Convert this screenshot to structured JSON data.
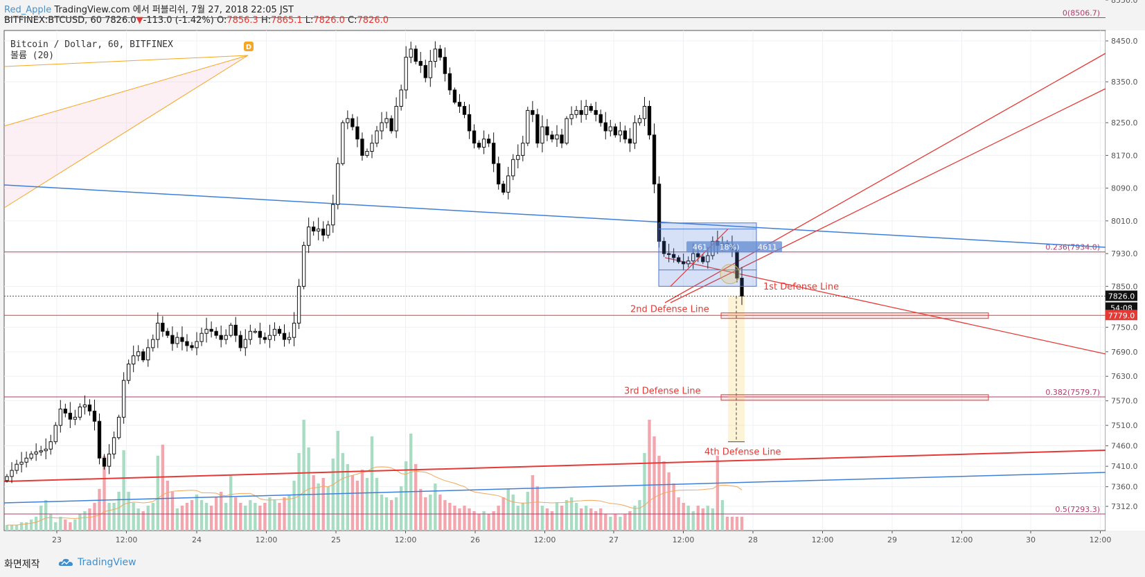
{
  "header": {
    "author": "Red_Apple",
    "published": "TradingView.com 에서 퍼블리쉬, 7월 27, 2018 22:05 JST",
    "symbol": "BITFINEX:BTCUSD, 60",
    "last": "7826.0",
    "arrow": "▼",
    "change": "-113.0 (-1.42%)",
    "o_label": "O:",
    "o_val": "7856.3",
    "h_label": "H:",
    "h_val": "7865.1",
    "l_label": "L:",
    "l_val": "7826.0",
    "c_label": "C:",
    "c_val": "7826.0"
  },
  "legend": {
    "series": "Bitcoin / Dollar, 60, BITFINEX",
    "volume": "볼륨 (20)",
    "marker": "D"
  },
  "footer": {
    "left": "화면제작",
    "brand": "TradingView"
  },
  "colors": {
    "up": "#5cbd9a",
    "down": "#000000",
    "vol_up": "#a8dcc3",
    "vol_down": "#f2a6ae",
    "annotation": "#e53935",
    "fib": "#b23b6a",
    "trend_blue": "#3d7fd8",
    "fan": "#f5a623"
  },
  "chart_data": {
    "type": "candlestick",
    "symbol": "BITFINEX:BTCUSD",
    "interval": "60",
    "y_ticks": [
      7312,
      7360,
      7410,
      7460,
      7510,
      7570,
      7630,
      7690,
      7750,
      7850,
      7930,
      8010,
      8090,
      8170,
      8250,
      8350,
      8450,
      8550
    ],
    "y_ticks_label": [
      "7312.0",
      "7360.0",
      "7410.0",
      "7460.0",
      "7510.0",
      "7570.0",
      "7630.0",
      "7690.0",
      "7750.0",
      "7850.0",
      "7930.0",
      "8010.0",
      "8090.0",
      "8170.0",
      "8250.0",
      "8350.0",
      "8450.0",
      "8550.0"
    ],
    "x_ticks": [
      "23",
      "12:00",
      "24",
      "12:00",
      "25",
      "12:00",
      "26",
      "12:00",
      "27",
      "12:00",
      "28",
      "12:00",
      "29",
      "12:00",
      "30",
      "12:00"
    ],
    "price_tags": {
      "last": "7826.0",
      "countdown": "54:08",
      "target": "7779.0"
    },
    "fib_levels": [
      {
        "label": "0(8506.7)",
        "value": 8506.7
      },
      {
        "label": "0.236(7934.0)",
        "value": 7934.0
      },
      {
        "label": "0.382(7579.7)",
        "value": 7579.7
      },
      {
        "label": "0.5(7293.3)",
        "value": 7293.3
      }
    ],
    "annotations": [
      {
        "text": "1st Defense Line",
        "price": 7850
      },
      {
        "text": "2nd Defense Line",
        "price": 7779
      },
      {
        "text": "3rd Defense Line",
        "price": 7579
      },
      {
        "text": "4th Defense Line",
        "price": 7455
      }
    ],
    "box_label": "461",
    "box_pct": "18%)",
    "box_vol": "4611",
    "close_path": [
      7385,
      7400,
      7415,
      7420,
      7430,
      7440,
      7445,
      7448,
      7452,
      7470,
      7510,
      7550,
      7540,
      7525,
      7530,
      7555,
      7560,
      7545,
      7520,
      7430,
      7410,
      7440,
      7480,
      7530,
      7620,
      7660,
      7680,
      7690,
      7670,
      7700,
      7720,
      7760,
      7740,
      7730,
      7710,
      7725,
      7715,
      7705,
      7700,
      7715,
      7735,
      7745,
      7740,
      7730,
      7720,
      7730,
      7755,
      7730,
      7700,
      7720,
      7740,
      7740,
      7725,
      7720,
      7730,
      7745,
      7735,
      7720,
      7725,
      7760,
      7850,
      7950,
      7995,
      7985,
      7990,
      7975,
      8000,
      8050,
      8150,
      8250,
      8260,
      8240,
      8210,
      8170,
      8180,
      8200,
      8230,
      8250,
      8260,
      8230,
      8290,
      8330,
      8410,
      8430,
      8400,
      8390,
      8360,
      8400,
      8430,
      8410,
      8370,
      8330,
      8300,
      8290,
      8270,
      8230,
      8200,
      8190,
      8210,
      8200,
      8150,
      8100,
      8080,
      8120,
      8160,
      8170,
      8200,
      8280,
      8270,
      8200,
      8240,
      8220,
      8210,
      8220,
      8200,
      8260,
      8270,
      8280,
      8270,
      8290,
      8280,
      8270,
      8250,
      8230,
      8240,
      8220,
      8230,
      8210,
      8200,
      8250,
      8260,
      8290,
      8220,
      8100,
      7960,
      7930,
      7928,
      7920,
      7910,
      7905,
      7912,
      7930,
      7922,
      7910,
      7925,
      7960,
      7950,
      7955,
      7952,
      7939,
      7870,
      7826
    ],
    "volume_profile": [
      2,
      2,
      2,
      3,
      3,
      4,
      5,
      9,
      11,
      6,
      3,
      5,
      4,
      3,
      4,
      6,
      7,
      8,
      10,
      15,
      27,
      10,
      10,
      14,
      29,
      14,
      10,
      8,
      7,
      9,
      10,
      27,
      31,
      18,
      14,
      8,
      9,
      10,
      11,
      13,
      11,
      10,
      9,
      12,
      14,
      10,
      20,
      12,
      10,
      9,
      11,
      10,
      9,
      10,
      12,
      11,
      10,
      12,
      13,
      18,
      28,
      40,
      30,
      20,
      17,
      19,
      16,
      26,
      36,
      28,
      24,
      20,
      18,
      22,
      19,
      34,
      19,
      13,
      12,
      11,
      12,
      16,
      25,
      35,
      24,
      15,
      12,
      13,
      17,
      13,
      11,
      10,
      9,
      8,
      9,
      8,
      7,
      6,
      7,
      6,
      7,
      9,
      12,
      15,
      13,
      9,
      10,
      14,
      20,
      16,
      9,
      8,
      7,
      10,
      9,
      11,
      12,
      10,
      8,
      9,
      8,
      7,
      8,
      6,
      5,
      6,
      5,
      6,
      7,
      9,
      11,
      28,
      40,
      34,
      27,
      25,
      21,
      17,
      12,
      10,
      9,
      7,
      9,
      8,
      9,
      8,
      27,
      11
    ]
  }
}
